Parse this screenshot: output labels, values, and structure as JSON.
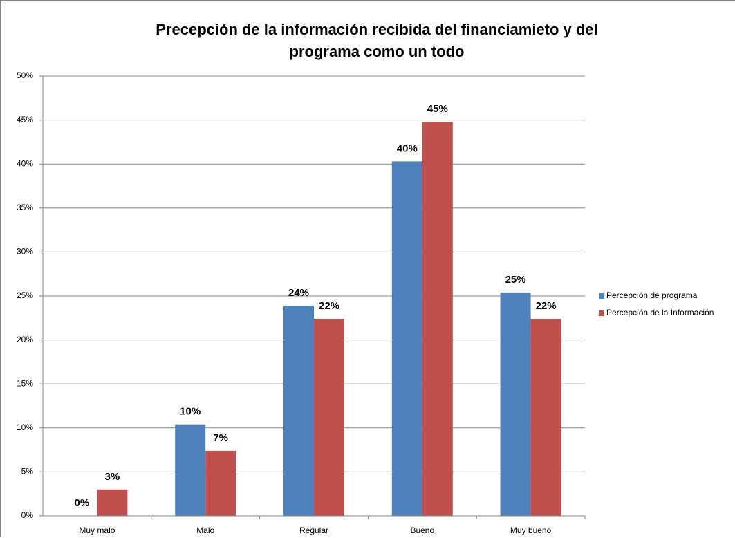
{
  "chart_data": {
    "type": "bar",
    "title": [
      "Precepción de la información recibida del  financiamieto y  del",
      "programa como un todo"
    ],
    "categories": [
      "Muy malo",
      "Malo",
      "Regular",
      "Bueno",
      "Muy bueno"
    ],
    "series": [
      {
        "name": "Percepción de programa",
        "color": "#4f81bd",
        "values": [
          0,
          10.4,
          23.9,
          40.3,
          25.4
        ],
        "value_labels": [
          "0%",
          "10%",
          "24%",
          "40%",
          "25%"
        ]
      },
      {
        "name": "Percepción de la Información",
        "color": "#c0504d",
        "values": [
          3.0,
          7.4,
          22.4,
          44.8,
          22.4
        ],
        "value_labels": [
          "3%",
          "7%",
          "22%",
          "45%",
          "22%"
        ]
      }
    ],
    "ylim": [
      0,
      50
    ],
    "yticks": [
      {
        "value": 0,
        "label": "0%"
      },
      {
        "value": 5,
        "label": "5%"
      },
      {
        "value": 10,
        "label": "10%"
      },
      {
        "value": 15,
        "label": "15%"
      },
      {
        "value": 20,
        "label": "20%"
      },
      {
        "value": 25,
        "label": "25%"
      },
      {
        "value": 30,
        "label": "30%"
      },
      {
        "value": 35,
        "label": "35%"
      },
      {
        "value": 40,
        "label": "40%"
      },
      {
        "value": 45,
        "label": "45%"
      },
      {
        "value": 50,
        "label": "50%"
      }
    ],
    "grid": true,
    "legend": "right"
  }
}
